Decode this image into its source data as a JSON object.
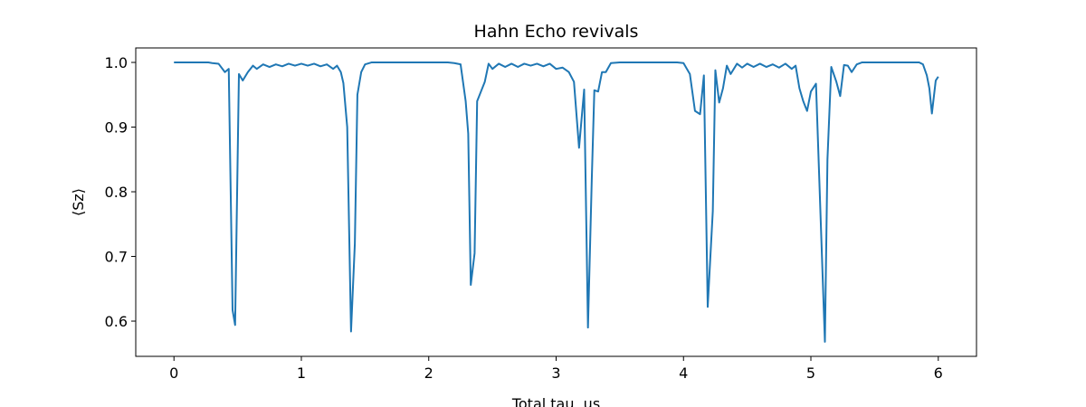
{
  "chart_data": {
    "type": "line",
    "title": "Hahn Echo revivals",
    "xlabel": "Total tau, us",
    "ylabel": "⟨Sz⟩",
    "xlim": [
      -0.3,
      6.3
    ],
    "ylim": [
      0.5455,
      1.0224
    ],
    "xticks": [
      0,
      1,
      2,
      3,
      4,
      5,
      6
    ],
    "yticks": [
      0.6,
      0.7,
      0.8,
      0.9,
      {
        "value": 1,
        "label": "1.0"
      }
    ],
    "series": [
      {
        "name": "Sz",
        "color": "#1f77b4",
        "x": [
          0,
          0.1,
          0.2,
          0.27,
          0.3,
          0.35,
          0.4,
          0.43,
          0.46,
          0.48,
          0.51,
          0.54,
          0.58,
          0.62,
          0.65,
          0.7,
          0.75,
          0.8,
          0.85,
          0.9,
          0.95,
          1.0,
          1.05,
          1.1,
          1.15,
          1.2,
          1.25,
          1.28,
          1.31,
          1.33,
          1.36,
          1.39,
          1.42,
          1.44,
          1.47,
          1.5,
          1.55,
          1.8,
          2.0,
          2.15,
          2.2,
          2.25,
          2.29,
          2.31,
          2.33,
          2.36,
          2.38,
          2.41,
          2.44,
          2.47,
          2.5,
          2.55,
          2.6,
          2.65,
          2.7,
          2.75,
          2.8,
          2.85,
          2.9,
          2.95,
          3.0,
          3.05,
          3.1,
          3.14,
          3.18,
          3.22,
          3.25,
          3.28,
          3.3,
          3.33,
          3.36,
          3.39,
          3.43,
          3.5,
          3.7,
          3.95,
          4.0,
          4.05,
          4.09,
          4.13,
          4.16,
          4.19,
          4.23,
          4.25,
          4.28,
          4.31,
          4.34,
          4.37,
          4.42,
          4.46,
          4.5,
          4.55,
          4.6,
          4.65,
          4.7,
          4.75,
          4.8,
          4.85,
          4.88,
          4.91,
          4.94,
          4.97,
          5.0,
          5.04,
          5.11,
          5.13,
          5.16,
          5.2,
          5.23,
          5.26,
          5.29,
          5.32,
          5.36,
          5.4,
          5.6,
          5.85,
          5.88,
          5.91,
          5.93,
          5.95,
          5.98,
          6.0
        ],
        "values": [
          1.0,
          1.0,
          1.0,
          1.0,
          0.999,
          0.998,
          0.985,
          0.99,
          0.617,
          0.594,
          0.982,
          0.972,
          0.985,
          0.995,
          0.99,
          0.997,
          0.993,
          0.997,
          0.994,
          0.998,
          0.995,
          0.998,
          0.995,
          0.998,
          0.994,
          0.997,
          0.99,
          0.995,
          0.985,
          0.968,
          0.9,
          0.584,
          0.72,
          0.95,
          0.985,
          0.997,
          1.0,
          1.0,
          1.0,
          1.0,
          0.999,
          0.997,
          0.94,
          0.89,
          0.656,
          0.705,
          0.94,
          0.955,
          0.97,
          0.998,
          0.99,
          0.998,
          0.993,
          0.998,
          0.993,
          0.998,
          0.995,
          0.998,
          0.994,
          0.998,
          0.99,
          0.992,
          0.985,
          0.97,
          0.868,
          0.958,
          0.59,
          0.82,
          0.957,
          0.955,
          0.985,
          0.985,
          0.999,
          1.0,
          1.0,
          1.0,
          0.999,
          0.982,
          0.925,
          0.92,
          0.98,
          0.622,
          0.77,
          0.988,
          0.938,
          0.96,
          0.995,
          0.982,
          0.998,
          0.992,
          0.998,
          0.993,
          0.998,
          0.993,
          0.997,
          0.992,
          0.998,
          0.99,
          0.995,
          0.96,
          0.94,
          0.925,
          0.955,
          0.967,
          0.568,
          0.85,
          0.993,
          0.97,
          0.948,
          0.996,
          0.995,
          0.985,
          0.997,
          1.0,
          1.0,
          1.0,
          0.997,
          0.98,
          0.96,
          0.921,
          0.972,
          0.978
        ]
      }
    ]
  }
}
